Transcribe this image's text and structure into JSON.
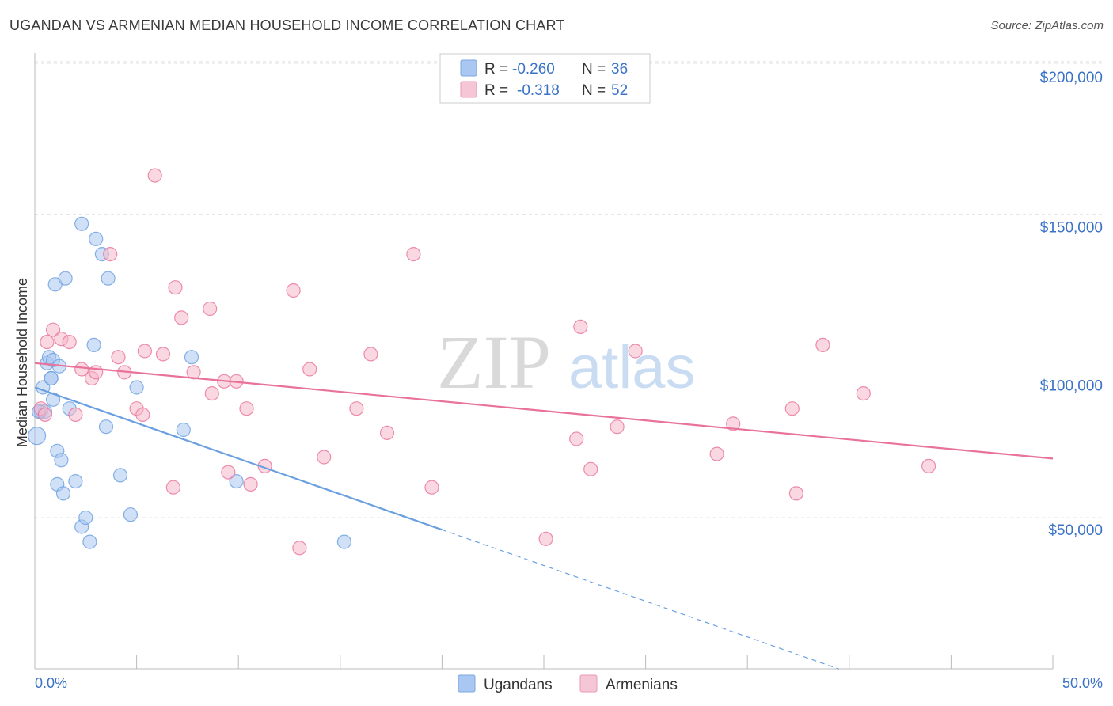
{
  "header": {
    "title": "UGANDAN VS ARMENIAN MEDIAN HOUSEHOLD INCOME CORRELATION CHART",
    "source": "Source: ZipAtlas.com"
  },
  "watermark": {
    "part1": "ZIP",
    "part2": "atlas"
  },
  "legend": {
    "r_label": "R =",
    "n_label": "N =",
    "entries": [
      {
        "r": "-0.260",
        "n": "36",
        "color": "#a9c7f0"
      },
      {
        "r": "-0.318",
        "n": "52",
        "color": "#f5b8cb"
      }
    ]
  },
  "bottom_legend": [
    "Ugandans",
    "Armenians"
  ],
  "chart_data": {
    "type": "scatter",
    "title": "UGANDAN VS ARMENIAN MEDIAN HOUSEHOLD INCOME CORRELATION CHART",
    "ylabel": "Median Household Income",
    "xlabel": "",
    "xlim": [
      0,
      50
    ],
    "ylim": [
      0,
      210000
    ],
    "x_tick_labels": [
      "0.0%",
      "50.0%"
    ],
    "y_ticks": [
      50000,
      100000,
      150000,
      200000
    ],
    "y_tick_labels": [
      "$50,000",
      "$100,000",
      "$150,000",
      "$200,000"
    ],
    "grid": true,
    "legend_position": "top-center",
    "series": [
      {
        "name": "Ugandans",
        "color": "#6a9fe0",
        "fill": "#a9c7f0",
        "trend": {
          "x": [
            0,
            20
          ],
          "y": [
            93000,
            46000
          ],
          "dashed_to": [
            39.5,
            0
          ]
        },
        "points": [
          [
            0.1,
            77000
          ],
          [
            0.3,
            85000
          ],
          [
            0.4,
            93000
          ],
          [
            0.5,
            85000
          ],
          [
            0.6,
            101000
          ],
          [
            0.7,
            103000
          ],
          [
            0.8,
            96000
          ],
          [
            0.8,
            96000
          ],
          [
            0.9,
            89000
          ],
          [
            0.9,
            102000
          ],
          [
            1.0,
            127000
          ],
          [
            1.1,
            72000
          ],
          [
            1.1,
            61000
          ],
          [
            1.2,
            100000
          ],
          [
            1.3,
            69000
          ],
          [
            1.4,
            58000
          ],
          [
            1.5,
            129000
          ],
          [
            1.7,
            86000
          ],
          [
            2.0,
            62000
          ],
          [
            2.3,
            147000
          ],
          [
            2.3,
            47000
          ],
          [
            2.5,
            50000
          ],
          [
            2.7,
            42000
          ],
          [
            2.9,
            107000
          ],
          [
            3.0,
            142000
          ],
          [
            3.3,
            137000
          ],
          [
            3.5,
            80000
          ],
          [
            3.6,
            129000
          ],
          [
            4.2,
            64000
          ],
          [
            4.7,
            51000
          ],
          [
            5.0,
            93000
          ],
          [
            7.3,
            79000
          ],
          [
            7.7,
            103000
          ],
          [
            9.9,
            62000
          ],
          [
            15.2,
            42000
          ],
          [
            0.2,
            85000
          ]
        ]
      },
      {
        "name": "Armenians",
        "color": "#e8729a",
        "fill": "#f5b8cb",
        "trend": {
          "x": [
            0,
            50
          ],
          "y": [
            101000,
            69500
          ]
        },
        "points": [
          [
            0.3,
            86000
          ],
          [
            0.5,
            84000
          ],
          [
            0.6,
            108000
          ],
          [
            0.9,
            112000
          ],
          [
            1.3,
            109000
          ],
          [
            1.7,
            108000
          ],
          [
            2.0,
            84000
          ],
          [
            2.3,
            99000
          ],
          [
            2.8,
            96000
          ],
          [
            3.0,
            98000
          ],
          [
            3.7,
            137000
          ],
          [
            4.1,
            103000
          ],
          [
            4.4,
            98000
          ],
          [
            5.0,
            86000
          ],
          [
            5.3,
            84000
          ],
          [
            5.4,
            105000
          ],
          [
            5.9,
            163000
          ],
          [
            6.3,
            104000
          ],
          [
            6.8,
            60000
          ],
          [
            6.9,
            126000
          ],
          [
            7.2,
            116000
          ],
          [
            7.8,
            98000
          ],
          [
            8.6,
            119000
          ],
          [
            8.7,
            91000
          ],
          [
            9.3,
            95000
          ],
          [
            9.5,
            65000
          ],
          [
            9.9,
            95000
          ],
          [
            10.4,
            86000
          ],
          [
            10.6,
            61000
          ],
          [
            11.3,
            67000
          ],
          [
            12.7,
            125000
          ],
          [
            13.0,
            40000
          ],
          [
            13.5,
            99000
          ],
          [
            14.2,
            70000
          ],
          [
            15.8,
            86000
          ],
          [
            16.5,
            104000
          ],
          [
            17.3,
            78000
          ],
          [
            18.6,
            137000
          ],
          [
            19.5,
            60000
          ],
          [
            25.1,
            43000
          ],
          [
            26.6,
            76000
          ],
          [
            26.8,
            113000
          ],
          [
            27.3,
            66000
          ],
          [
            28.6,
            80000
          ],
          [
            29.5,
            105000
          ],
          [
            33.5,
            71000
          ],
          [
            34.3,
            81000
          ],
          [
            37.2,
            86000
          ],
          [
            37.4,
            58000
          ],
          [
            38.7,
            107000
          ],
          [
            40.7,
            91000
          ],
          [
            43.9,
            67000
          ]
        ]
      }
    ]
  }
}
